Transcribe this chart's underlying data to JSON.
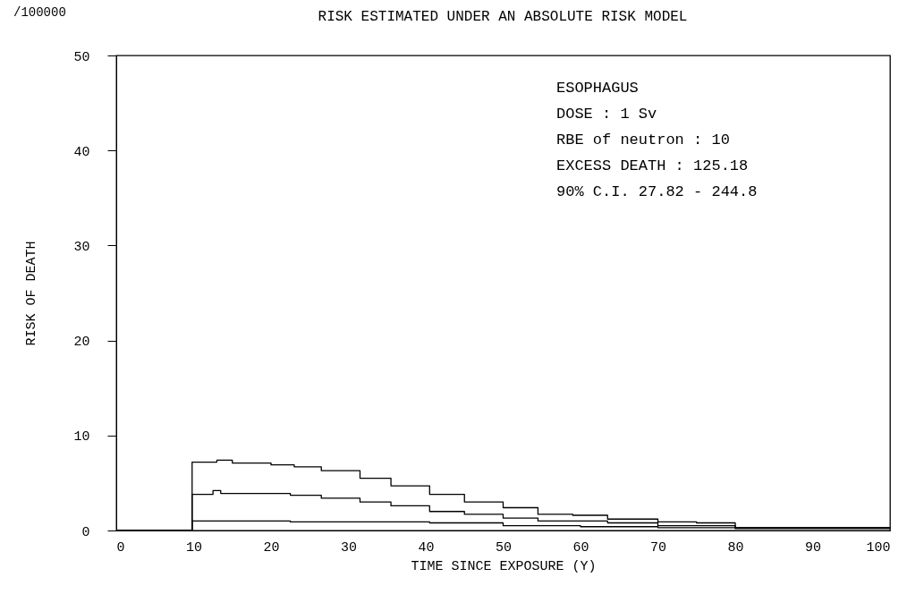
{
  "chart_data": {
    "type": "step",
    "title": "RISK ESTIMATED UNDER AN ABSOLUTE RISK MODEL",
    "xlabel": "TIME SINCE EXPOSURE (Y)",
    "ylabel": "RISK OF DEATH",
    "annotations": [
      "/100000",
      "ESOPHAGUS",
      "DOSE : 1 Sv",
      "RBE of neutron : 10",
      "EXCESS DEATH : 125.18",
      "90% C.I.  27.82 - 244.8"
    ],
    "xlim": [
      0,
      100
    ],
    "xticks": [
      0,
      10,
      20,
      30,
      40,
      50,
      60,
      70,
      80,
      90,
      100
    ],
    "ylim": [
      0,
      50
    ],
    "yticks": [
      0,
      10,
      20,
      30,
      40,
      50
    ],
    "grid": false,
    "series": [
      {
        "color": "#000000",
        "x": [
          0,
          9.8,
          13,
          15,
          20,
          23,
          26.5,
          31.5,
          35.5,
          40.5,
          45,
          50,
          54.5,
          59,
          63.5,
          70,
          75,
          80,
          100
        ],
        "values": [
          0,
          7.2,
          7.4,
          7.1,
          6.9,
          6.7,
          6.3,
          5.5,
          4.7,
          3.8,
          3,
          2.4,
          1.7,
          1.6,
          1.2,
          0.9,
          0.8,
          0.3,
          0.3
        ]
      },
      {
        "color": "#000000",
        "x": [
          0,
          9.8,
          12.5,
          13.5,
          22.5,
          26.5,
          31.5,
          35.5,
          40.5,
          45,
          50,
          54.5,
          63.5,
          70,
          80,
          100
        ],
        "values": [
          0,
          3.8,
          4.2,
          3.9,
          3.7,
          3.4,
          3,
          2.6,
          2,
          1.7,
          1.3,
          1,
          0.8,
          0.5,
          0.3,
          0.3
        ]
      },
      {
        "color": "#000000",
        "x": [
          0,
          9.8,
          22.5,
          40.5,
          50,
          60,
          70,
          80,
          100
        ],
        "values": [
          0,
          1,
          0.9,
          0.8,
          0.5,
          0.4,
          0.3,
          0.2,
          0.2
        ]
      }
    ]
  }
}
